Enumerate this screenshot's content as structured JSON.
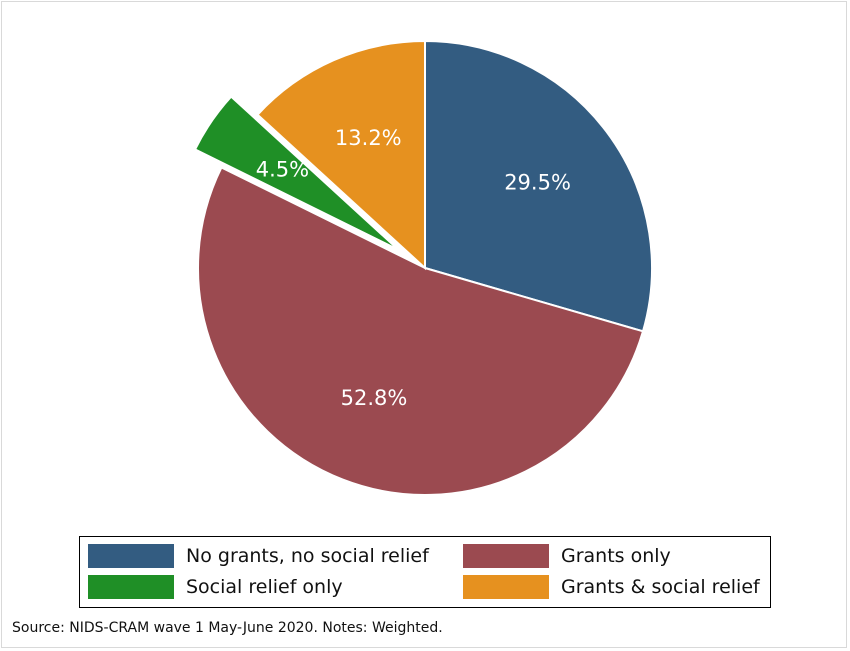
{
  "chart_data": {
    "type": "pie",
    "slices": [
      {
        "name": "No grants, no social relief",
        "value": 29.5,
        "label": "29.5%",
        "color": "#335c81",
        "exploded": false
      },
      {
        "name": "Grants only",
        "value": 52.8,
        "label": "52.8%",
        "color": "#9b4a50",
        "exploded": false
      },
      {
        "name": "Social relief only",
        "value": 4.5,
        "label": "4.5%",
        "color": "#1f8f26",
        "exploded": true
      },
      {
        "name": "Grants & social relief",
        "value": 13.2,
        "label": "13.2%",
        "color": "#e6911f",
        "exploded": false
      }
    ],
    "start": "12 o'clock",
    "direction": "clockwise",
    "legend": {
      "placement": "bottom",
      "columns": 2,
      "entries": [
        "No grants, no social relief",
        "Grants only",
        "Social relief only",
        "Grants & social relief"
      ]
    }
  },
  "note": "Source: NIDS-CRAM wave 1 May-June 2020. Notes: Weighted."
}
